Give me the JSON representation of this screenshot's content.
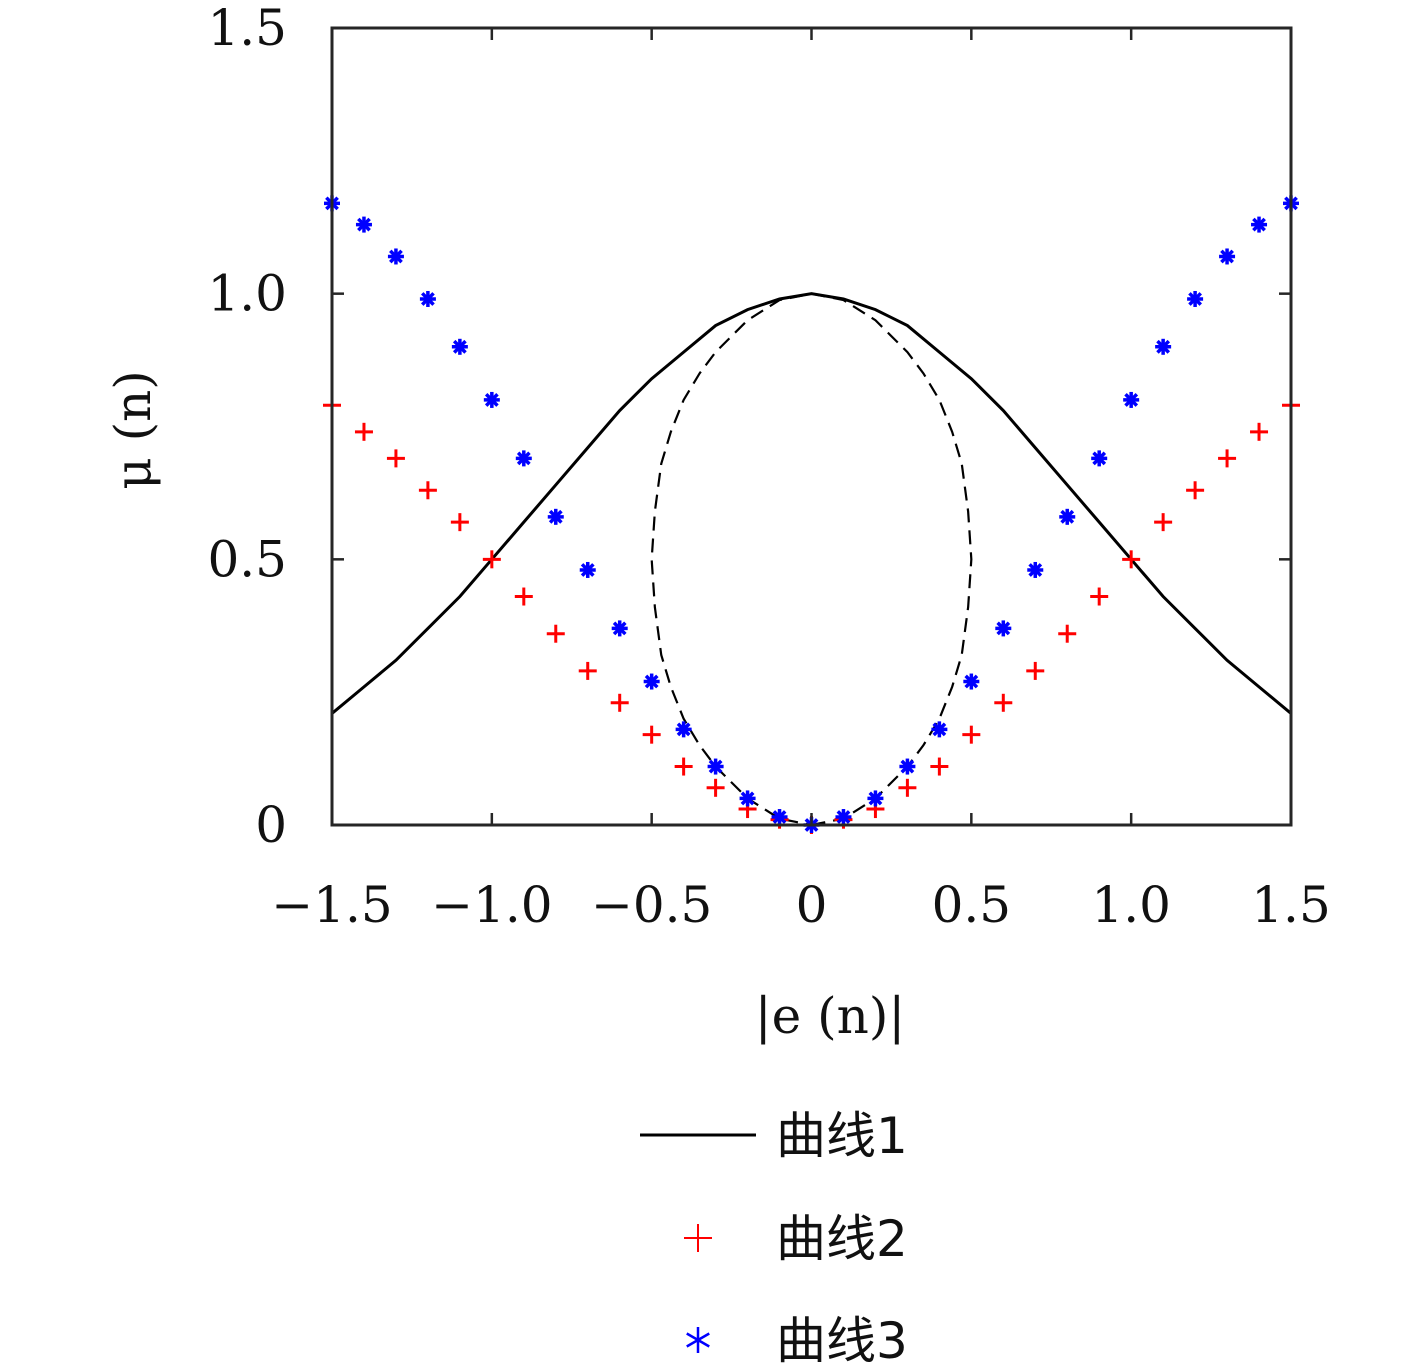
{
  "chart_data": {
    "type": "scatter",
    "xlabel": "|e (n)|",
    "ylabel": "μ (n)",
    "xlim": [
      -1.5,
      1.5
    ],
    "ylim": [
      0,
      1.5
    ],
    "xticks": [
      -1.5,
      -1.0,
      -0.5,
      0,
      0.5,
      1.0,
      1.5
    ],
    "xtick_labels": [
      "−1.5",
      "−1.0",
      "−0.5",
      "0",
      "0.5",
      "1.0",
      "1.5"
    ],
    "yticks": [
      0,
      0.5,
      1.0,
      1.5
    ],
    "ytick_labels": [
      "0",
      "0.5",
      "1.0",
      "1.5"
    ],
    "grid": false,
    "legend_position": "below",
    "series": [
      {
        "name": "曲线1",
        "style": "solid-line",
        "color": "#000000",
        "x": [
          -1.5,
          -1.4,
          -1.3,
          -1.2,
          -1.1,
          -1.0,
          -0.9,
          -0.8,
          -0.7,
          -0.6,
          -0.5,
          -0.4,
          -0.3,
          -0.2,
          -0.1,
          0,
          0.1,
          0.2,
          0.3,
          0.4,
          0.5,
          0.6,
          0.7,
          0.8,
          0.9,
          1.0,
          1.1,
          1.2,
          1.3,
          1.4,
          1.5
        ],
        "y": [
          0.21,
          0.26,
          0.31,
          0.37,
          0.43,
          0.5,
          0.57,
          0.64,
          0.71,
          0.78,
          0.84,
          0.89,
          0.94,
          0.97,
          0.99,
          1.0,
          0.99,
          0.97,
          0.94,
          0.89,
          0.84,
          0.78,
          0.71,
          0.64,
          0.57,
          0.5,
          0.43,
          0.37,
          0.31,
          0.26,
          0.21
        ]
      },
      {
        "name": "",
        "style": "dashed-line",
        "color": "#000000",
        "x": [
          0,
          0.1,
          0.2,
          0.3,
          0.35,
          0.4,
          0.44,
          0.47,
          0.49,
          0.5,
          0.49,
          0.47,
          0.44,
          0.4,
          0.35,
          0.3,
          0.2,
          0.1,
          0,
          -0.1,
          -0.2,
          -0.3,
          -0.35,
          -0.4,
          -0.44,
          -0.47,
          -0.49,
          -0.5,
          -0.49,
          -0.47,
          -0.44,
          -0.4,
          -0.35,
          -0.3,
          -0.2,
          -0.1,
          0
        ],
        "y": [
          0,
          0.012,
          0.05,
          0.11,
          0.15,
          0.2,
          0.26,
          0.32,
          0.41,
          0.5,
          0.59,
          0.68,
          0.74,
          0.8,
          0.85,
          0.89,
          0.95,
          0.988,
          1.0,
          0.988,
          0.95,
          0.89,
          0.85,
          0.8,
          0.74,
          0.68,
          0.59,
          0.5,
          0.41,
          0.32,
          0.26,
          0.2,
          0.15,
          0.11,
          0.05,
          0.012,
          0
        ]
      },
      {
        "name": "曲线2",
        "style": "plus-marker",
        "color": "#ff0000",
        "x": [
          -1.5,
          -1.4,
          -1.3,
          -1.2,
          -1.1,
          -1.0,
          -0.9,
          -0.8,
          -0.7,
          -0.6,
          -0.5,
          -0.4,
          -0.3,
          -0.2,
          -0.1,
          0,
          0.1,
          0.2,
          0.3,
          0.4,
          0.5,
          0.6,
          0.7,
          0.8,
          0.9,
          1.0,
          1.1,
          1.2,
          1.3,
          1.4,
          1.5
        ],
        "y": [
          0.79,
          0.74,
          0.69,
          0.63,
          0.57,
          0.5,
          0.43,
          0.36,
          0.29,
          0.23,
          0.17,
          0.11,
          0.07,
          0.03,
          0.01,
          0,
          0.01,
          0.03,
          0.07,
          0.11,
          0.17,
          0.23,
          0.29,
          0.36,
          0.43,
          0.5,
          0.57,
          0.63,
          0.69,
          0.74,
          0.79
        ]
      },
      {
        "name": "曲线3",
        "style": "star-marker",
        "color": "#0000ff",
        "x": [
          -1.5,
          -1.4,
          -1.3,
          -1.2,
          -1.1,
          -1.0,
          -0.9,
          -0.8,
          -0.7,
          -0.6,
          -0.5,
          -0.4,
          -0.3,
          -0.2,
          -0.1,
          0,
          0.1,
          0.2,
          0.3,
          0.4,
          0.5,
          0.6,
          0.7,
          0.8,
          0.9,
          1.0,
          1.1,
          1.2,
          1.3,
          1.4,
          1.5
        ],
        "y": [
          1.17,
          1.13,
          1.07,
          0.99,
          0.9,
          0.8,
          0.69,
          0.58,
          0.48,
          0.37,
          0.27,
          0.18,
          0.11,
          0.05,
          0.015,
          0,
          0.015,
          0.05,
          0.11,
          0.18,
          0.27,
          0.37,
          0.48,
          0.58,
          0.69,
          0.8,
          0.9,
          0.99,
          1.07,
          1.13,
          1.17
        ]
      }
    ]
  }
}
